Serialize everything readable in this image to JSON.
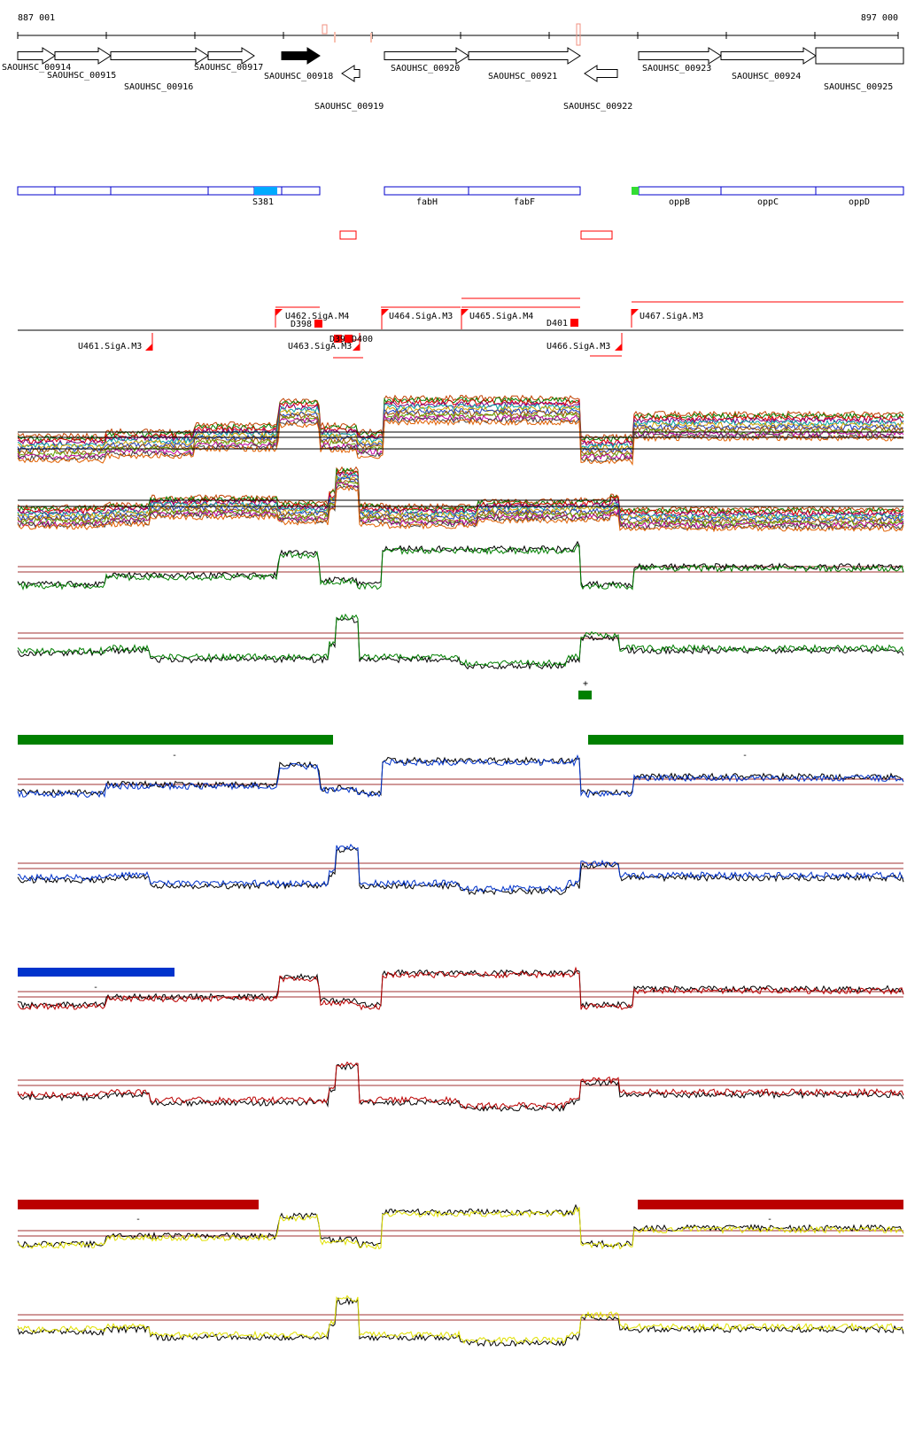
{
  "coords": {
    "start": "887 001",
    "end": "897 000"
  },
  "genes": [
    {
      "label": "SAOUHSC_00914",
      "strand": "+",
      "color": "#ffffff"
    },
    {
      "label": "SAOUHSC_00915",
      "strand": "+",
      "color": "#ffffff"
    },
    {
      "label": "SAOUHSC_00916",
      "strand": "+",
      "color": "#ffffff"
    },
    {
      "label": "SAOUHSC_00917",
      "strand": "+",
      "color": "#ffffff"
    },
    {
      "label": "SAOUHSC_00918",
      "strand": "+",
      "color": "#000000"
    },
    {
      "label": "SAOUHSC_00919",
      "strand": "-",
      "color": "#ffffff"
    },
    {
      "label": "SAOUHSC_00920",
      "strand": "+",
      "color": "#ffffff"
    },
    {
      "label": "SAOUHSC_00921",
      "strand": "+",
      "color": "#ffffff"
    },
    {
      "label": "SAOUHSC_00922",
      "strand": "-",
      "color": "#ffffff"
    },
    {
      "label": "SAOUHSC_00923",
      "strand": "+",
      "color": "#ffffff"
    },
    {
      "label": "SAOUHSC_00924",
      "strand": "+",
      "color": "#ffffff"
    },
    {
      "label": "SAOUHSC_00925",
      "strand": "+",
      "color": "#ffffff"
    }
  ],
  "annotations": [
    {
      "label": "S381",
      "color": "#00aaff"
    },
    {
      "label": "fabH",
      "color": "#0000cc"
    },
    {
      "label": "fabF",
      "color": "#0000cc"
    },
    {
      "label": "oppB",
      "color": "#0000cc"
    },
    {
      "label": "oppC",
      "color": "#0000cc"
    },
    {
      "label": "oppD",
      "color": "#0000cc"
    }
  ],
  "segments": [
    {
      "label": "U461.SigA.M3",
      "strand": "-"
    },
    {
      "label": "U462.SigA.M4",
      "strand": "+"
    },
    {
      "label": "D398",
      "strand": "+"
    },
    {
      "label": "U463.SigA.M3",
      "strand": "-"
    },
    {
      "label": "D399",
      "strand": "-"
    },
    {
      "label": "D400",
      "strand": "-"
    },
    {
      "label": "U464.SigA.M3",
      "strand": "+"
    },
    {
      "label": "U465.SigA.M4",
      "strand": "+"
    },
    {
      "label": "D401",
      "strand": "+"
    },
    {
      "label": "U466.SigA.M3",
      "strand": "-"
    },
    {
      "label": "U467.SigA.M3",
      "strand": "+"
    }
  ],
  "condition_tracks": [
    {
      "color": "#008000",
      "plus_marker": "+",
      "minus_marker_left": "-",
      "minus_marker_right": "-"
    },
    {
      "color": "#0033cc",
      "minus_marker_left": "-"
    },
    {
      "color": "#bb0000",
      "minus_marker_left": "-",
      "minus_marker_right": "-"
    },
    {
      "color": "#e0e000"
    }
  ],
  "colors": {
    "gene_outline": "#000000",
    "annotation_outline": "#0000cc",
    "segment_red": "#ff0000",
    "threshold_line": "#a03030"
  }
}
